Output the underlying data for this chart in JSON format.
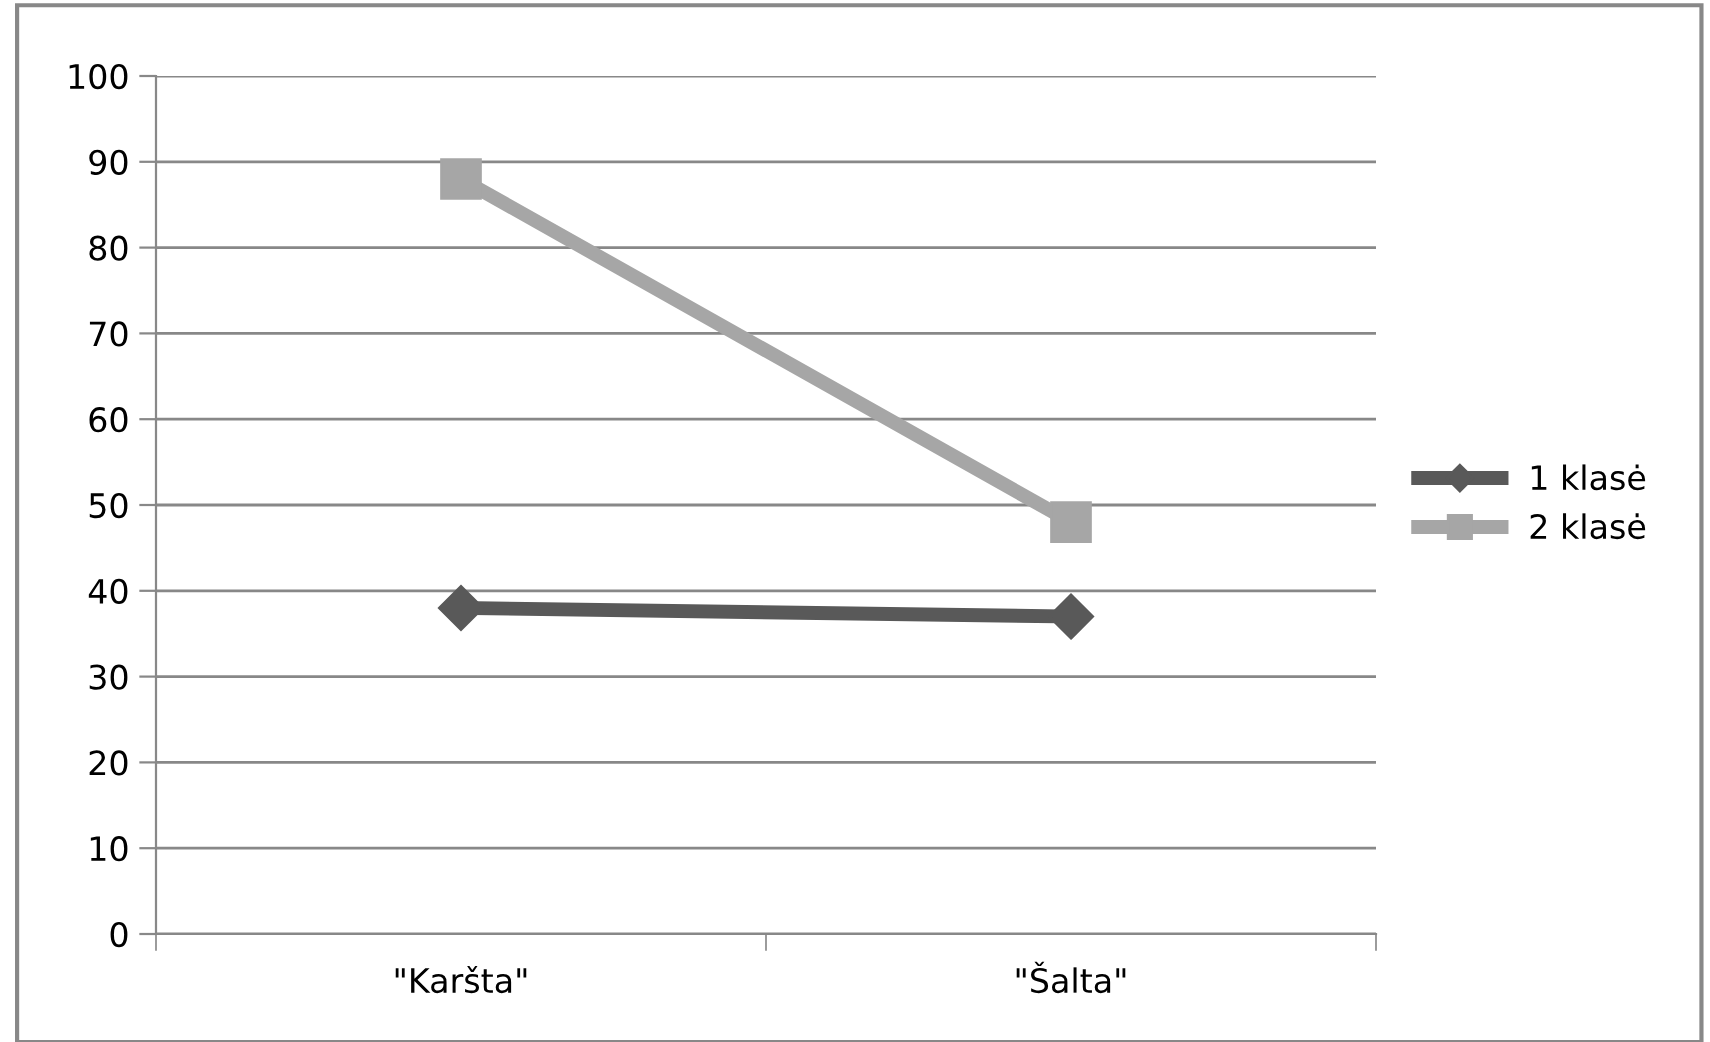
{
  "chart_data": {
    "type": "line",
    "categories": [
      "\"Karšta\"",
      "\"Šalta\""
    ],
    "series": [
      {
        "name": "1 klasė",
        "color": "#595959",
        "values": [
          38,
          37
        ],
        "marker": "diamond"
      },
      {
        "name": "2 klasė",
        "color": "#a6a6a6",
        "values": [
          88,
          48
        ],
        "marker": "square"
      }
    ],
    "ylim": [
      0,
      100
    ],
    "yticks": [
      0,
      10,
      20,
      30,
      40,
      50,
      60,
      70,
      80,
      90,
      100
    ],
    "grid": "y",
    "legend": "right",
    "line_style": "solid"
  }
}
